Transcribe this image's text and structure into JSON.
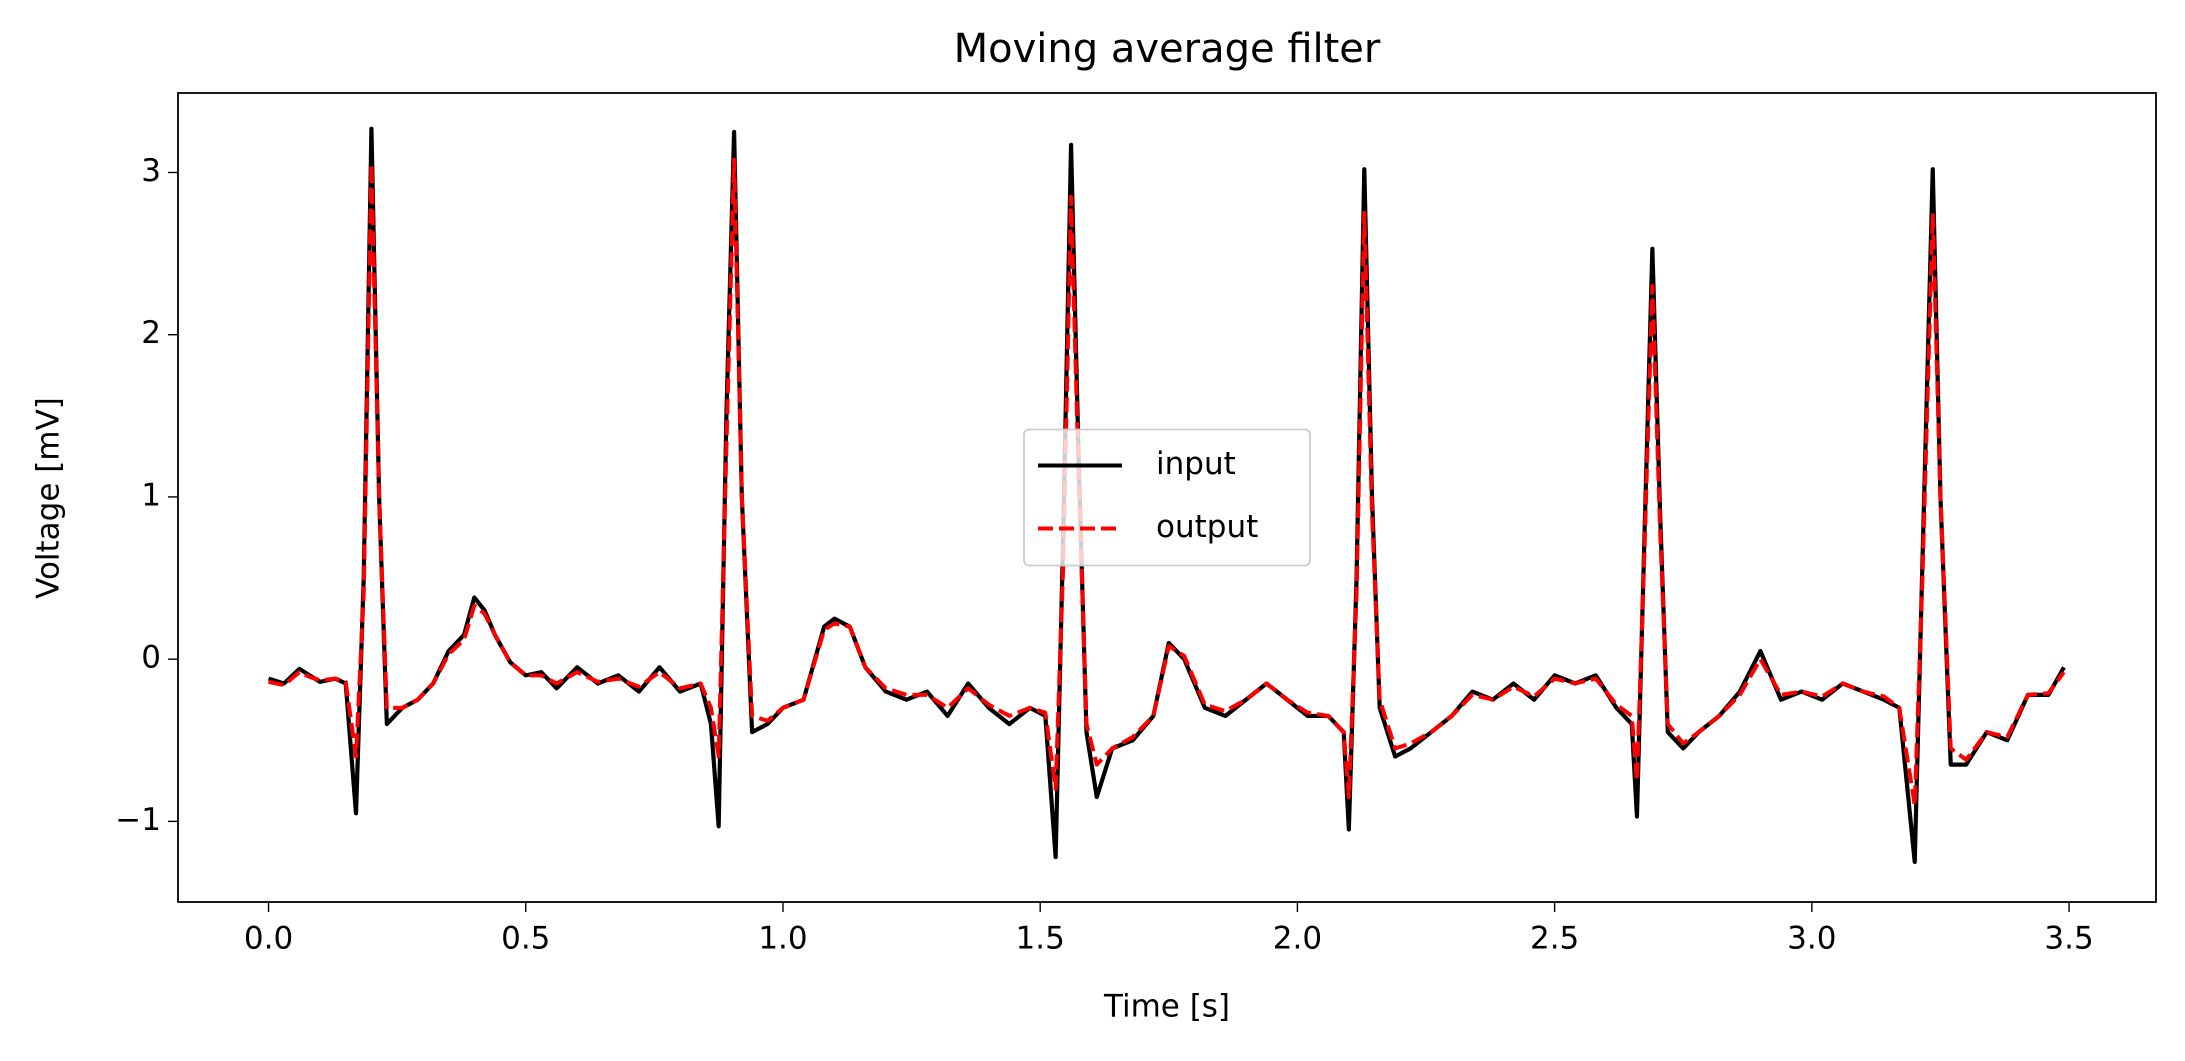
{
  "chart_data": {
    "type": "line",
    "title": "Moving average filter",
    "x_label": "Time [s]",
    "y_label": "Voltage [mV]",
    "x": [
      0.0,
      0.03,
      0.06,
      0.08,
      0.1,
      0.13,
      0.15,
      0.17,
      0.185,
      0.2,
      0.215,
      0.23,
      0.26,
      0.29,
      0.32,
      0.35,
      0.38,
      0.4,
      0.42,
      0.44,
      0.47,
      0.5,
      0.53,
      0.56,
      0.6,
      0.64,
      0.68,
      0.72,
      0.76,
      0.8,
      0.84,
      0.86,
      0.875,
      0.89,
      0.905,
      0.92,
      0.94,
      0.97,
      1.0,
      1.04,
      1.08,
      1.1,
      1.13,
      1.16,
      1.2,
      1.24,
      1.28,
      1.32,
      1.36,
      1.4,
      1.44,
      1.48,
      1.51,
      1.53,
      1.545,
      1.56,
      1.575,
      1.59,
      1.61,
      1.64,
      1.68,
      1.72,
      1.75,
      1.78,
      1.82,
      1.86,
      1.9,
      1.94,
      1.98,
      2.02,
      2.06,
      2.09,
      2.1,
      2.115,
      2.13,
      2.145,
      2.16,
      2.19,
      2.22,
      2.26,
      2.3,
      2.34,
      2.38,
      2.42,
      2.46,
      2.5,
      2.54,
      2.58,
      2.62,
      2.65,
      2.66,
      2.675,
      2.69,
      2.705,
      2.72,
      2.75,
      2.78,
      2.82,
      2.86,
      2.9,
      2.94,
      2.98,
      3.02,
      3.06,
      3.1,
      3.14,
      3.17,
      3.2,
      3.215,
      3.235,
      3.25,
      3.27,
      3.3,
      3.34,
      3.38,
      3.42,
      3.46,
      3.49
    ],
    "series": [
      {
        "name": "input",
        "color": "#000000",
        "linestyle": "solid",
        "values": [
          -0.12,
          -0.15,
          -0.06,
          -0.1,
          -0.14,
          -0.12,
          -0.15,
          -0.95,
          0.5,
          3.27,
          1.0,
          -0.4,
          -0.3,
          -0.25,
          -0.15,
          0.05,
          0.15,
          0.38,
          0.3,
          0.15,
          -0.02,
          -0.1,
          -0.08,
          -0.18,
          -0.05,
          -0.15,
          -0.1,
          -0.2,
          -0.05,
          -0.2,
          -0.15,
          -0.4,
          -1.03,
          1.5,
          3.25,
          1.0,
          -0.45,
          -0.4,
          -0.3,
          -0.25,
          0.2,
          0.25,
          0.2,
          -0.05,
          -0.2,
          -0.25,
          -0.2,
          -0.35,
          -0.15,
          -0.3,
          -0.4,
          -0.3,
          -0.35,
          -1.22,
          0.8,
          3.17,
          1.2,
          -0.45,
          -0.85,
          -0.55,
          -0.5,
          -0.35,
          0.1,
          0.0,
          -0.3,
          -0.35,
          -0.25,
          -0.15,
          -0.25,
          -0.35,
          -0.35,
          -0.45,
          -1.05,
          0.5,
          3.02,
          1.0,
          -0.3,
          -0.6,
          -0.55,
          -0.45,
          -0.35,
          -0.2,
          -0.25,
          -0.15,
          -0.25,
          -0.1,
          -0.15,
          -0.1,
          -0.3,
          -0.4,
          -0.97,
          0.8,
          2.53,
          0.9,
          -0.45,
          -0.55,
          -0.45,
          -0.35,
          -0.2,
          0.05,
          -0.25,
          -0.2,
          -0.25,
          -0.15,
          -0.2,
          -0.25,
          -0.3,
          -1.25,
          0.6,
          3.02,
          1.0,
          -0.65,
          -0.65,
          -0.45,
          -0.5,
          -0.22,
          -0.22,
          -0.05
        ]
      },
      {
        "name": "output",
        "color": "#ff0000",
        "linestyle": "dashed",
        "values": [
          -0.14,
          -0.16,
          -0.08,
          -0.11,
          -0.13,
          -0.12,
          -0.14,
          -0.6,
          0.4,
          3.05,
          1.0,
          -0.3,
          -0.3,
          -0.25,
          -0.15,
          0.03,
          0.12,
          0.33,
          0.28,
          0.15,
          -0.02,
          -0.1,
          -0.1,
          -0.15,
          -0.08,
          -0.14,
          -0.12,
          -0.17,
          -0.08,
          -0.18,
          -0.15,
          -0.3,
          -0.6,
          1.3,
          3.08,
          1.0,
          -0.35,
          -0.38,
          -0.3,
          -0.25,
          0.18,
          0.22,
          0.2,
          -0.05,
          -0.18,
          -0.22,
          -0.22,
          -0.3,
          -0.18,
          -0.28,
          -0.35,
          -0.3,
          -0.33,
          -0.8,
          0.6,
          2.85,
          1.1,
          -0.4,
          -0.65,
          -0.55,
          -0.48,
          -0.35,
          0.08,
          0.02,
          -0.28,
          -0.32,
          -0.25,
          -0.15,
          -0.25,
          -0.33,
          -0.35,
          -0.45,
          -0.85,
          0.4,
          2.75,
          0.9,
          -0.25,
          -0.55,
          -0.52,
          -0.45,
          -0.35,
          -0.22,
          -0.25,
          -0.17,
          -0.23,
          -0.12,
          -0.15,
          -0.12,
          -0.28,
          -0.35,
          -0.75,
          0.7,
          2.3,
          0.8,
          -0.4,
          -0.52,
          -0.45,
          -0.35,
          -0.22,
          0.0,
          -0.22,
          -0.2,
          -0.23,
          -0.15,
          -0.2,
          -0.23,
          -0.3,
          -0.9,
          0.5,
          2.75,
          1.0,
          -0.55,
          -0.62,
          -0.45,
          -0.48,
          -0.22,
          -0.21,
          -0.08
        ]
      }
    ],
    "xlim": [
      -0.176,
      3.669
    ],
    "ylim": [
      -1.497,
      3.49
    ],
    "xticks": [
      {
        "value": 0,
        "label": "0.0"
      },
      0.5,
      {
        "value": 1,
        "label": "1.0"
      },
      1.5,
      {
        "value": 2,
        "label": "2.0"
      },
      2.5,
      {
        "value": 3,
        "label": "3.0"
      },
      3.5
    ],
    "yticks": [
      {
        "value": -1,
        "label": "−1"
      },
      0,
      1,
      2,
      3
    ],
    "grid": false,
    "legend": "center"
  }
}
